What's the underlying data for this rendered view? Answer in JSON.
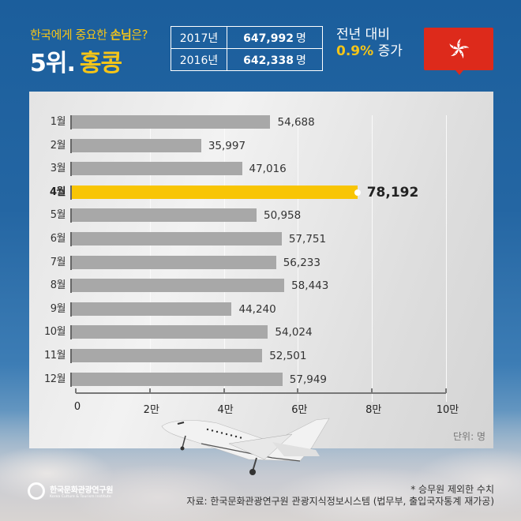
{
  "header": {
    "kicker_prefix": "한국에게 중요한 ",
    "kicker_emphasis": "손님",
    "kicker_suffix": "은?",
    "rank": "5위.",
    "country": "홍콩"
  },
  "stats_table": {
    "rows": [
      {
        "year": "2017년",
        "value": "647,992",
        "unit": "명"
      },
      {
        "year": "2016년",
        "value": "642,338",
        "unit": "명"
      }
    ]
  },
  "comparison": {
    "line1": "전년 대비",
    "percent": "0.9%",
    "direction": "증가"
  },
  "flag": {
    "icon": "hong-kong-flag-icon",
    "color": "#dd2a1b"
  },
  "chart_data": {
    "type": "bar",
    "orientation": "horizontal",
    "title": "한국에게 중요한 손님은? 5위. 홍콩",
    "categories": [
      "1월",
      "2월",
      "3월",
      "4월",
      "5월",
      "6월",
      "7월",
      "8월",
      "9월",
      "10월",
      "11월",
      "12월"
    ],
    "values": [
      54688,
      35997,
      47016,
      78192,
      50958,
      57751,
      56233,
      58443,
      44240,
      54024,
      52501,
      57949
    ],
    "value_labels": [
      "54,688",
      "35,997",
      "47,016",
      "78,192",
      "50,958",
      "57,751",
      "56,233",
      "58,443",
      "44,240",
      "54,024",
      "52,501",
      "57,949"
    ],
    "highlight_index": 3,
    "highlight_color": "#f8c505",
    "bar_color": "#a8a8a8",
    "xlim": [
      0,
      100000
    ],
    "x_ticks": [
      0,
      20000,
      40000,
      60000,
      80000,
      100000
    ],
    "x_tick_labels": [
      "0",
      "2만",
      "4만",
      "6만",
      "8만",
      "10만"
    ],
    "xlabel": "",
    "ylabel": "",
    "unit_label": "단위: 명",
    "grid": true
  },
  "footer": {
    "note": "* 승무원 제외한 수치",
    "source": "자료: 한국문화관광연구원 관광지식정보시스템 (법무부, 출입국자통계 재가공)",
    "logo_ko": "한국문화관광연구원",
    "logo_en": "Korea Culture & Tourism Institute"
  }
}
